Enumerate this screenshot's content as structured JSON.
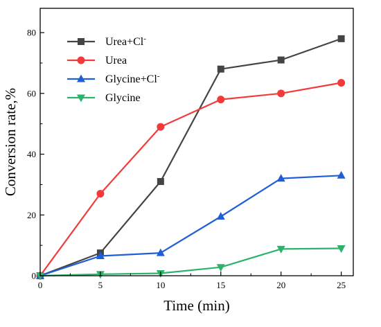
{
  "chart_data": {
    "type": "line",
    "title": "",
    "xlabel": "Time (min)",
    "ylabel": "Conversion rate,%",
    "xlim": [
      0,
      26
    ],
    "ylim": [
      0,
      88
    ],
    "xticks": [
      0,
      5,
      10,
      15,
      20,
      25
    ],
    "yticks": [
      0,
      20,
      40,
      60,
      80
    ],
    "grid": false,
    "legend_position": "top-left",
    "series": [
      {
        "name": "Urea+Cl",
        "superscript": "-",
        "color": "#444444",
        "marker": "square",
        "x": [
          0,
          5,
          10,
          15,
          20,
          25
        ],
        "y": [
          0,
          7.5,
          31,
          68,
          71,
          78
        ]
      },
      {
        "name": "Urea",
        "superscript": "",
        "color": "#f23a3a",
        "marker": "circle",
        "x": [
          0,
          5,
          10,
          15,
          20,
          25
        ],
        "y": [
          0,
          27,
          49,
          58,
          60,
          63.5
        ]
      },
      {
        "name": "Glycine+Cl",
        "superscript": "-",
        "color": "#1f5fd6",
        "marker": "triangle-up",
        "x": [
          0,
          5,
          10,
          15,
          20,
          25
        ],
        "y": [
          0,
          6.5,
          7.5,
          19.5,
          32,
          33
        ]
      },
      {
        "name": "Glycine",
        "superscript": "",
        "color": "#2bb36a",
        "marker": "triangle-down",
        "x": [
          0,
          5,
          10,
          15,
          20,
          25
        ],
        "y": [
          0,
          0.5,
          0.8,
          2.8,
          8.8,
          9
        ]
      }
    ]
  }
}
